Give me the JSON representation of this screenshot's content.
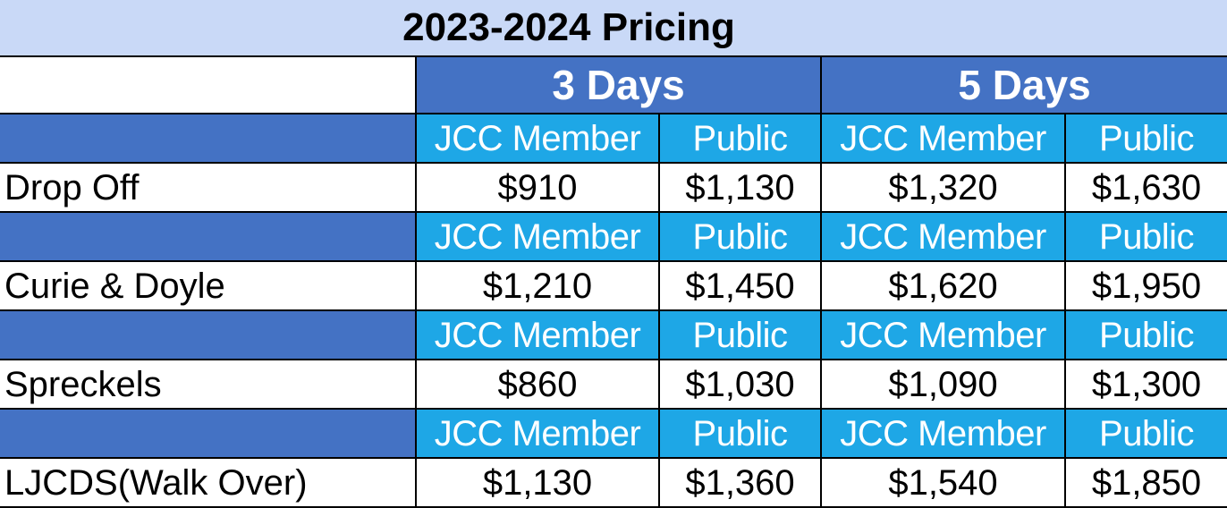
{
  "title": "2023-2024 Pricing",
  "day_groups": [
    "3 Days",
    "5 Days"
  ],
  "sub_headers": [
    "JCC Member",
    "Public",
    "JCC Member",
    "Public"
  ],
  "rows": [
    {
      "name": "Drop Off",
      "prices": [
        "$910",
        "$1,130",
        "$1,320",
        "$1,630"
      ]
    },
    {
      "name": "Curie & Doyle",
      "prices": [
        "$1,210",
        "$1,450",
        "$1,620",
        "$1,950"
      ]
    },
    {
      "name": "Spreckels",
      "prices": [
        "$860",
        "$1,030",
        "$1,090",
        "$1,300"
      ]
    },
    {
      "name": "LJCDS(Walk Over)",
      "prices": [
        "$1,130",
        "$1,360",
        "$1,540",
        "$1,850"
      ]
    }
  ],
  "colors": {
    "title_bg": "#c9d9f7",
    "header_blue": "#4472c4",
    "sub_header_blue": "#1ea7e6"
  }
}
